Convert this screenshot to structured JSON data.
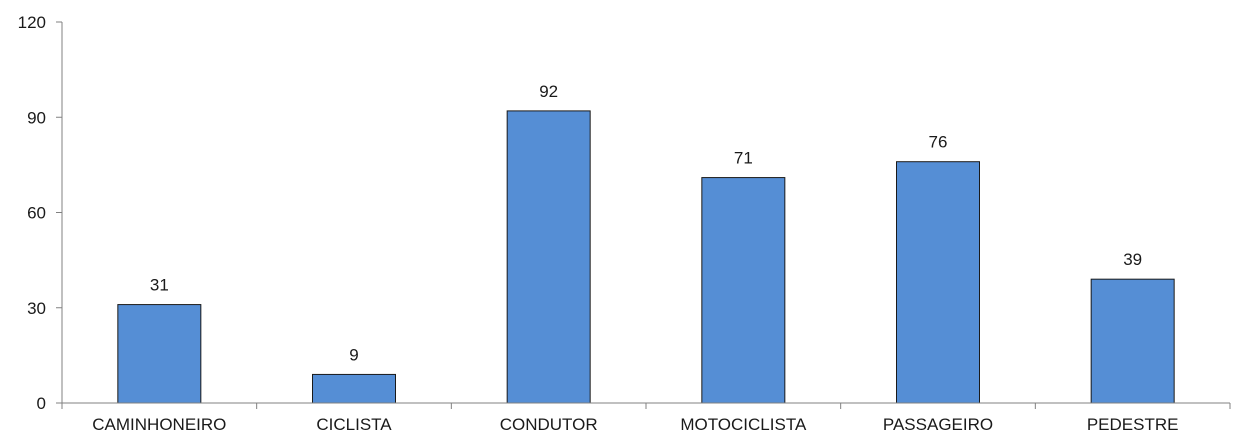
{
  "chart_data": {
    "type": "bar",
    "categories": [
      "CAMINHONEIRO",
      "CICLISTA",
      "CONDUTOR",
      "MOTOCICLISTA",
      "PASSAGEIRO",
      "PEDESTRE"
    ],
    "values": [
      31,
      9,
      92,
      71,
      76,
      39
    ],
    "data_labels": [
      "31",
      "9",
      "92",
      "71",
      "76",
      "39"
    ],
    "title": "",
    "xlabel": "",
    "ylabel": "",
    "ylim": [
      0,
      120
    ],
    "yticks": [
      0,
      30,
      60,
      90,
      120
    ],
    "ytick_labels": [
      "0",
      "30",
      "60",
      "90",
      "120"
    ],
    "grid": false,
    "legend": "none",
    "bar_color": "#558ED5",
    "bar_edge_color": "#1a1a1a"
  }
}
